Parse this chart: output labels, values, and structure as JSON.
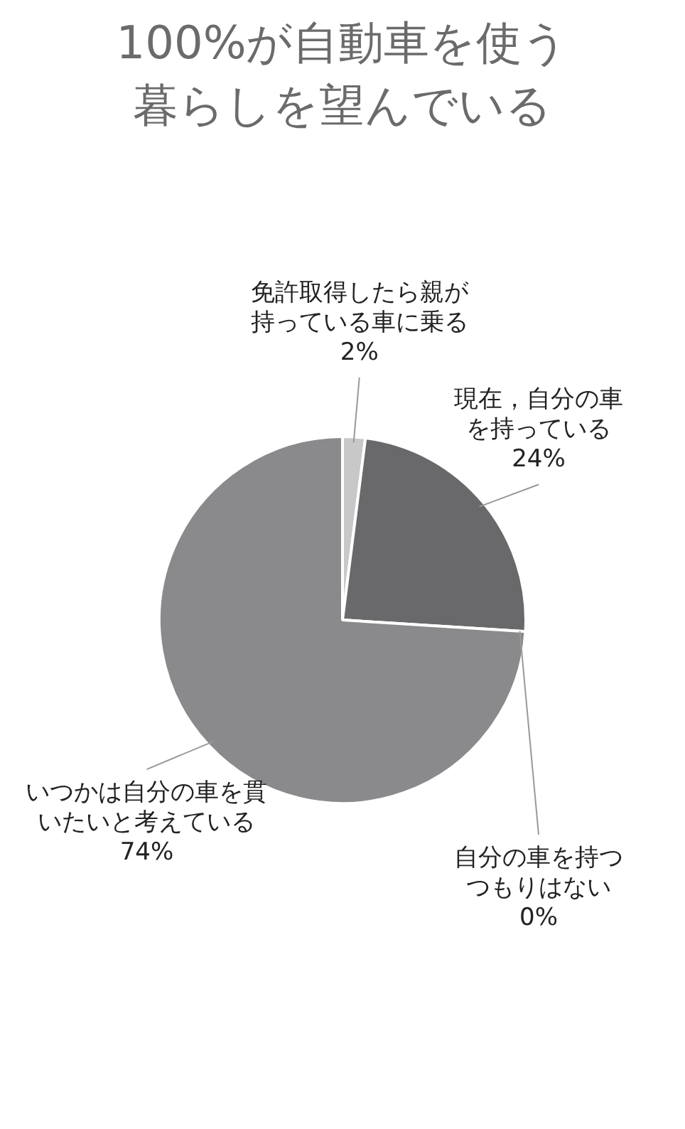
{
  "chart_data": {
    "type": "pie",
    "title": "100%が自動車を使う暮らしを望んでいる",
    "categories": [
      "免許取得したら親が持っている車に乗る",
      "現在，自分の車を持っている",
      "自分の車を持つつもりはない",
      "いつかは自分の車を貫いたいと考えている"
    ],
    "values": [
      2,
      24,
      0,
      74
    ],
    "value_labels": [
      "2%",
      "24%",
      "0%",
      "74%"
    ],
    "colors": [
      "#c8c8c8",
      "#69696b",
      "#bdbdbd",
      "#8a8a8c"
    ],
    "legend": false
  }
}
